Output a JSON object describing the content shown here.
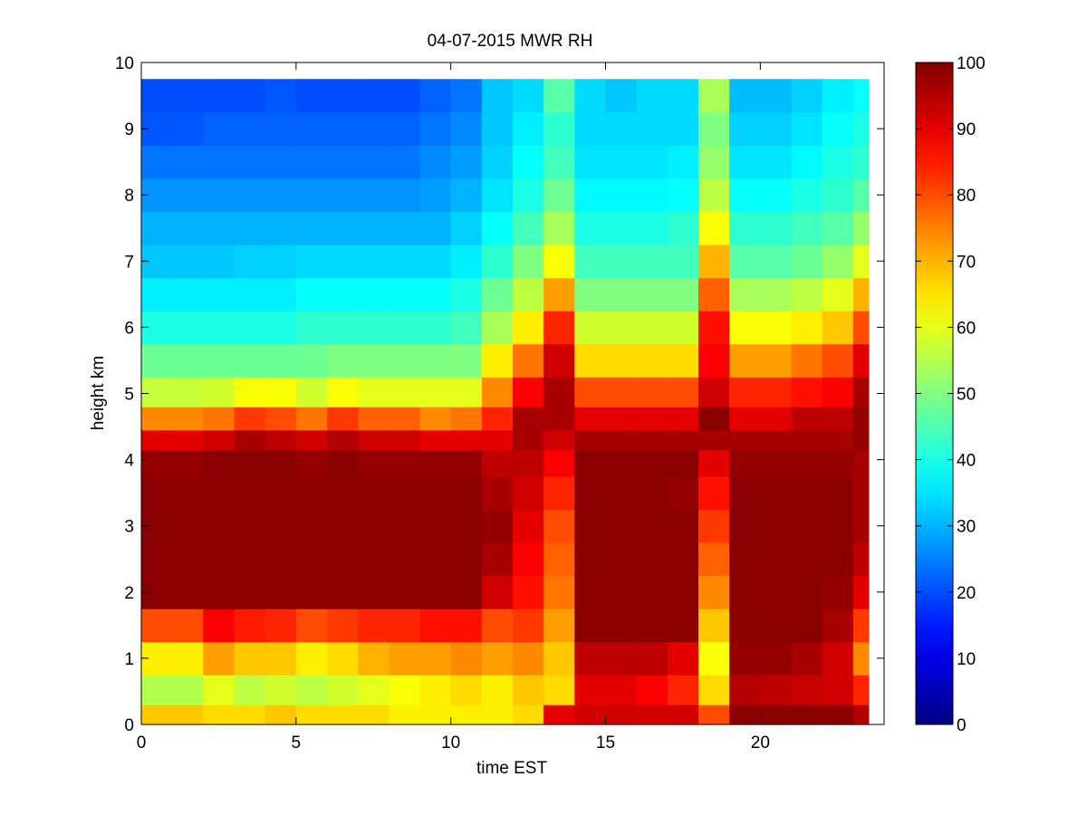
{
  "chart_data": {
    "type": "heatmap",
    "title": "04-07-2015 MWR RH",
    "xlabel": "time EST",
    "ylabel": "height km",
    "xlim": [
      0,
      24
    ],
    "ylim": [
      0,
      10
    ],
    "x_ticks": [
      0,
      5,
      10,
      15,
      20
    ],
    "y_ticks": [
      0,
      1,
      2,
      3,
      4,
      5,
      6,
      7,
      8,
      9,
      10
    ],
    "colorbar": {
      "colormap": "jet",
      "range": [
        0,
        100
      ],
      "ticks": [
        0,
        10,
        20,
        30,
        40,
        50,
        60,
        70,
        80,
        90,
        100
      ]
    },
    "grid": false,
    "time_hours": [
      0.5,
      1.5,
      2.5,
      3.5,
      4.5,
      5.5,
      6.5,
      7.5,
      8.5,
      9.5,
      10.5,
      11.5,
      12.5,
      13.5,
      14.5,
      15.5,
      16.5,
      17.5,
      18.5,
      19.5,
      20.5,
      21.5,
      22.5,
      23.5
    ],
    "height_km": [
      0.1,
      0.5,
      1.0,
      1.5,
      2.0,
      2.5,
      3.0,
      3.5,
      4.0,
      4.3,
      4.6,
      5.0,
      5.5,
      6.0,
      6.5,
      7.0,
      7.5,
      8.0,
      8.5,
      9.0,
      9.5
    ],
    "rh_percent": [
      [
        68,
        55,
        64,
        80,
        99,
        99,
        99,
        99,
        98,
        90,
        74,
        57,
        48,
        40,
        36,
        32,
        30,
        27,
        24,
        21,
        20
      ],
      [
        68,
        55,
        64,
        80,
        99,
        99,
        99,
        99,
        98,
        90,
        74,
        57,
        48,
        40,
        36,
        32,
        30,
        27,
        24,
        21,
        20
      ],
      [
        66,
        60,
        72,
        88,
        99,
        99,
        99,
        99,
        99,
        92,
        76,
        58,
        48,
        40,
        36,
        32,
        30,
        27,
        24,
        22,
        20
      ],
      [
        66,
        56,
        68,
        85,
        99,
        99,
        99,
        99,
        99,
        96,
        82,
        62,
        48,
        40,
        36,
        33,
        30,
        27,
        24,
        22,
        20
      ],
      [
        68,
        58,
        68,
        84,
        99,
        99,
        99,
        99,
        99,
        94,
        80,
        62,
        48,
        40,
        36,
        33,
        30,
        27,
        24,
        22,
        21
      ],
      [
        66,
        56,
        64,
        80,
        99,
        99,
        99,
        99,
        98,
        92,
        76,
        58,
        48,
        42,
        38,
        34,
        30,
        27,
        24,
        22,
        20
      ],
      [
        66,
        58,
        66,
        82,
        99,
        99,
        99,
        99,
        99,
        95,
        82,
        62,
        50,
        42,
        38,
        34,
        30,
        27,
        24,
        22,
        20
      ],
      [
        66,
        60,
        70,
        84,
        99,
        99,
        99,
        99,
        98,
        92,
        78,
        60,
        50,
        42,
        38,
        34,
        30,
        27,
        24,
        22,
        20
      ],
      [
        64,
        62,
        72,
        84,
        99,
        99,
        99,
        99,
        98,
        92,
        78,
        60,
        50,
        42,
        38,
        34,
        30,
        27,
        24,
        22,
        20
      ],
      [
        64,
        64,
        72,
        86,
        99,
        99,
        99,
        99,
        98,
        90,
        74,
        60,
        50,
        42,
        38,
        34,
        30,
        28,
        26,
        24,
        22
      ],
      [
        64,
        66,
        74,
        86,
        99,
        99,
        99,
        99,
        98,
        90,
        76,
        60,
        50,
        44,
        40,
        36,
        33,
        30,
        28,
        26,
        24
      ],
      [
        64,
        64,
        72,
        80,
        92,
        96,
        98,
        96,
        94,
        90,
        84,
        74,
        64,
        54,
        48,
        42,
        38,
        35,
        33,
        32,
        32
      ],
      [
        66,
        68,
        74,
        82,
        86,
        88,
        90,
        92,
        94,
        96,
        96,
        88,
        76,
        64,
        56,
        50,
        44,
        40,
        38,
        36,
        34
      ],
      [
        90,
        66,
        68,
        72,
        76,
        78,
        80,
        84,
        88,
        92,
        96,
        96,
        92,
        84,
        72,
        62,
        54,
        48,
        44,
        42,
        46
      ],
      [
        92,
        90,
        94,
        99,
        99,
        99,
        99,
        99,
        99,
        96,
        90,
        80,
        66,
        58,
        50,
        44,
        40,
        37,
        35,
        34,
        34
      ],
      [
        92,
        90,
        94,
        99,
        99,
        99,
        99,
        99,
        99,
        96,
        90,
        80,
        66,
        58,
        50,
        44,
        40,
        37,
        35,
        34,
        32
      ],
      [
        92,
        88,
        94,
        99,
        99,
        99,
        99,
        99,
        99,
        96,
        90,
        80,
        66,
        58,
        50,
        44,
        40,
        37,
        35,
        34,
        34
      ],
      [
        92,
        84,
        90,
        99,
        99,
        99,
        99,
        98,
        99,
        96,
        90,
        80,
        66,
        58,
        50,
        44,
        42,
        38,
        36,
        34,
        34
      ],
      [
        80,
        66,
        62,
        68,
        74,
        78,
        82,
        86,
        90,
        96,
        99,
        92,
        88,
        86,
        78,
        70,
        62,
        56,
        52,
        50,
        54
      ],
      [
        99,
        95,
        98,
        99,
        99,
        99,
        99,
        99,
        98,
        96,
        90,
        84,
        72,
        62,
        54,
        46,
        42,
        38,
        35,
        33,
        31
      ],
      [
        99,
        94,
        98,
        99,
        99,
        99,
        99,
        99,
        98,
        96,
        90,
        84,
        72,
        62,
        54,
        46,
        42,
        38,
        35,
        33,
        31
      ],
      [
        99,
        93,
        96,
        99,
        99,
        99,
        99,
        99,
        98,
        96,
        94,
        86,
        76,
        64,
        56,
        48,
        44,
        40,
        37,
        35,
        33
      ],
      [
        99,
        92,
        92,
        96,
        98,
        99,
        99,
        99,
        98,
        96,
        94,
        88,
        80,
        68,
        60,
        52,
        46,
        42,
        40,
        38,
        36
      ],
      [
        95,
        84,
        74,
        82,
        90,
        94,
        96,
        96,
        96,
        98,
        98,
        96,
        90,
        80,
        70,
        60,
        52,
        46,
        42,
        40,
        38
      ]
    ]
  }
}
